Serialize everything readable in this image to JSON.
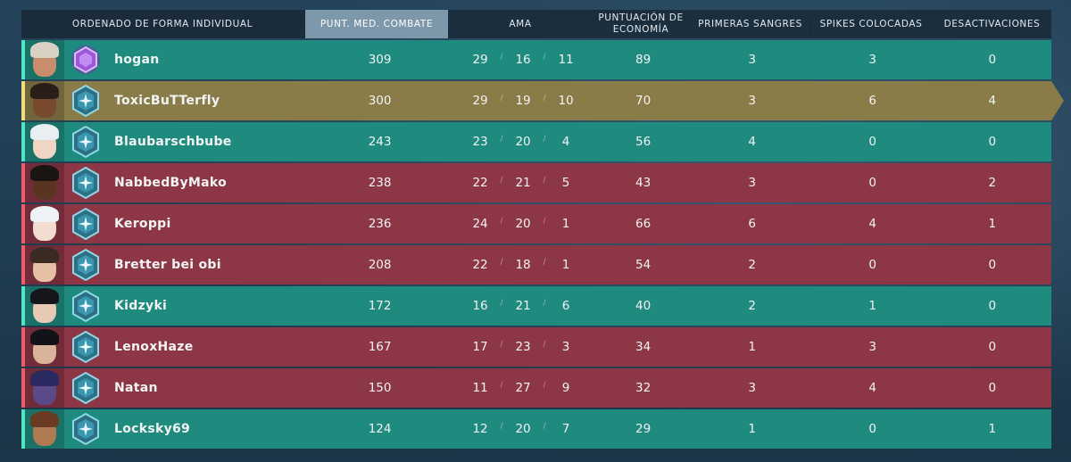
{
  "header": {
    "sort_label": "ORDENADO DE FORMA INDIVIDUAL",
    "acs": "PUNT. MED. COMBATE",
    "kda": "AMA",
    "econ": "PUNTUACIÓN DE ECONOMÍA",
    "first_bloods": "PRIMERAS SANGRES",
    "plants": "SPIKES COLOCADAS",
    "defuses": "DESACTIVACIONES"
  },
  "colors": {
    "ally": "#1f8a7e",
    "enemy": "#8c3646",
    "self": "#8a7c48"
  },
  "players": [
    {
      "name": "hogan",
      "team": "ally",
      "rank_icon": "ascendant-rank-icon",
      "acs": "309",
      "k": "29",
      "d": "16",
      "a": "11",
      "econ": "89",
      "fb": "3",
      "plants": "3",
      "defuses": "0"
    },
    {
      "name": "ToxicBuTTerfly",
      "team": "self",
      "rank_icon": "diamond-rank-icon",
      "acs": "300",
      "k": "29",
      "d": "19",
      "a": "10",
      "econ": "70",
      "fb": "3",
      "plants": "6",
      "defuses": "4"
    },
    {
      "name": "Blaubarschbube",
      "team": "ally",
      "rank_icon": "diamond-rank-icon",
      "acs": "243",
      "k": "23",
      "d": "20",
      "a": "4",
      "econ": "56",
      "fb": "4",
      "plants": "0",
      "defuses": "0"
    },
    {
      "name": "NabbedByMako",
      "team": "enemy",
      "rank_icon": "diamond-rank-icon",
      "acs": "238",
      "k": "22",
      "d": "21",
      "a": "5",
      "econ": "43",
      "fb": "3",
      "plants": "0",
      "defuses": "2"
    },
    {
      "name": "Keroppi",
      "team": "enemy",
      "rank_icon": "diamond-rank-icon",
      "acs": "236",
      "k": "24",
      "d": "20",
      "a": "1",
      "econ": "66",
      "fb": "6",
      "plants": "4",
      "defuses": "1"
    },
    {
      "name": "Bretter bei obi",
      "team": "enemy",
      "rank_icon": "diamond-rank-icon",
      "acs": "208",
      "k": "22",
      "d": "18",
      "a": "1",
      "econ": "54",
      "fb": "2",
      "plants": "0",
      "defuses": "0"
    },
    {
      "name": "Kidzyki",
      "team": "ally",
      "rank_icon": "diamond-rank-icon",
      "acs": "172",
      "k": "16",
      "d": "21",
      "a": "6",
      "econ": "40",
      "fb": "2",
      "plants": "1",
      "defuses": "0"
    },
    {
      "name": "LenoxHaze",
      "team": "enemy",
      "rank_icon": "diamond-rank-icon",
      "acs": "167",
      "k": "17",
      "d": "23",
      "a": "3",
      "econ": "34",
      "fb": "1",
      "plants": "3",
      "defuses": "0"
    },
    {
      "name": "Natan",
      "team": "enemy",
      "rank_icon": "diamond-rank-icon",
      "acs": "150",
      "k": "11",
      "d": "27",
      "a": "9",
      "econ": "32",
      "fb": "3",
      "plants": "4",
      "defuses": "0"
    },
    {
      "name": "Locksky69",
      "team": "ally",
      "rank_icon": "diamond-rank-icon",
      "acs": "124",
      "k": "12",
      "d": "20",
      "a": "7",
      "econ": "29",
      "fb": "1",
      "plants": "0",
      "defuses": "1"
    }
  ]
}
